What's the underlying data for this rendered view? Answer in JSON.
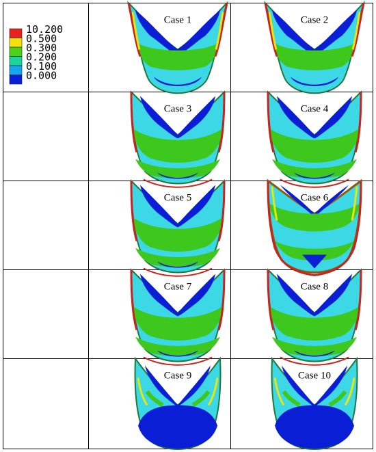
{
  "legend": {
    "items": [
      {
        "value": "10.200",
        "color": "#e8211d"
      },
      {
        "value": "0.500",
        "color": "#f4e20d"
      },
      {
        "value": "0.300",
        "color": "#4cd219"
      },
      {
        "value": "0.200",
        "color": "#19d69c"
      },
      {
        "value": "0.100",
        "color": "#12a8f0"
      },
      {
        "value": "0.000",
        "color": "#0a1ed6"
      }
    ]
  },
  "cases": [
    {
      "label": "Case 1",
      "variant": "a"
    },
    {
      "label": "Case 2",
      "variant": "a"
    },
    {
      "label": "Case 3",
      "variant": "b"
    },
    {
      "label": "Case 4",
      "variant": "b"
    },
    {
      "label": "Case 5",
      "variant": "b"
    },
    {
      "label": "Case 6",
      "variant": "c"
    },
    {
      "label": "Case 7",
      "variant": "b"
    },
    {
      "label": "Case 8",
      "variant": "b"
    },
    {
      "label": "Case 9",
      "variant": "d"
    },
    {
      "label": "Case 10",
      "variant": "d"
    }
  ],
  "colors": {
    "grid_line": "#000000",
    "dark_blue": "#0a1ed6",
    "cyan": "#3cd8e6",
    "green": "#3ec81e",
    "yellow": "#e7e70f",
    "red": "#c8231d"
  }
}
